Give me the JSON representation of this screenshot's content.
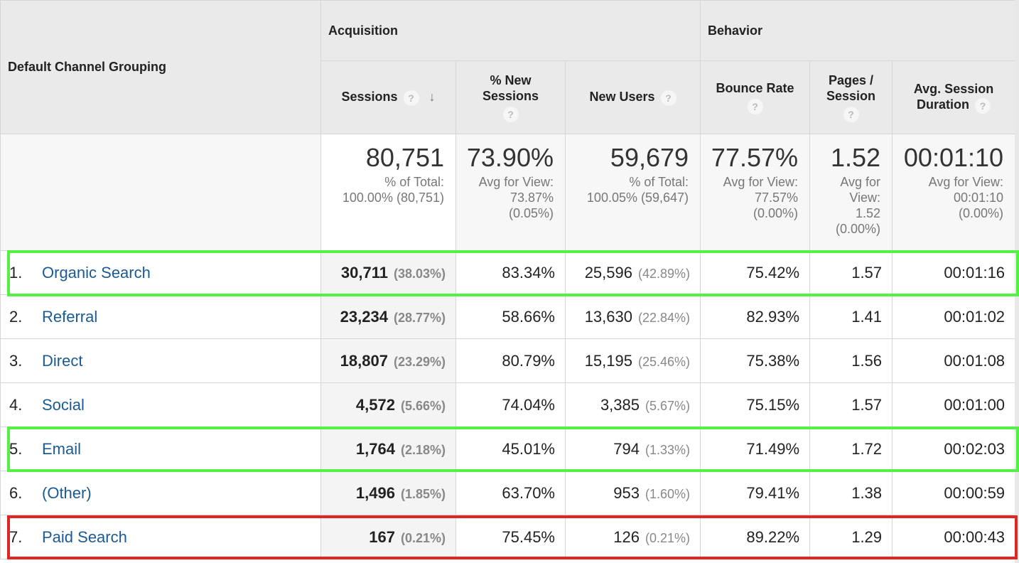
{
  "header": {
    "dimension": "Default Channel Grouping",
    "groups": [
      "Acquisition",
      "Behavior"
    ],
    "columns": [
      "Sessions",
      "% New Sessions",
      "New Users",
      "Bounce Rate",
      "Pages / Session",
      "Avg. Session Duration"
    ],
    "help_icon": "?"
  },
  "totals": {
    "sessions": {
      "value": "80,751",
      "l1": "% of Total:",
      "l2": "100.00% (80,751)"
    },
    "new_sessions": {
      "value": "73.90%",
      "l1": "Avg for View:",
      "l2": "73.87%",
      "l3": "(0.05%)"
    },
    "new_users": {
      "value": "59,679",
      "l1": "% of Total:",
      "l2": "100.05% (59,647)"
    },
    "bounce": {
      "value": "77.57%",
      "l1": "Avg for View:",
      "l2": "77.57%",
      "l3": "(0.00%)"
    },
    "pages": {
      "value": "1.52",
      "l1": "Avg for",
      "l2": "View:",
      "l3": "1.52",
      "l4": "(0.00%)"
    },
    "duration": {
      "value": "00:01:10",
      "l1": "Avg for View:",
      "l2": "00:01:10",
      "l3": "(0.00%)"
    }
  },
  "rows": [
    {
      "rank": "1.",
      "channel": "Organic Search",
      "sessions": "30,711",
      "sessions_pct": "(38.03%)",
      "new_sessions": "83.34%",
      "new_users": "25,596",
      "new_users_pct": "(42.89%)",
      "bounce": "75.42%",
      "pages": "1.57",
      "duration": "00:01:16"
    },
    {
      "rank": "2.",
      "channel": "Referral",
      "sessions": "23,234",
      "sessions_pct": "(28.77%)",
      "new_sessions": "58.66%",
      "new_users": "13,630",
      "new_users_pct": "(22.84%)",
      "bounce": "82.93%",
      "pages": "1.41",
      "duration": "00:01:02"
    },
    {
      "rank": "3.",
      "channel": "Direct",
      "sessions": "18,807",
      "sessions_pct": "(23.29%)",
      "new_sessions": "80.79%",
      "new_users": "15,195",
      "new_users_pct": "(25.46%)",
      "bounce": "75.38%",
      "pages": "1.56",
      "duration": "00:01:08"
    },
    {
      "rank": "4.",
      "channel": "Social",
      "sessions": "4,572",
      "sessions_pct": "(5.66%)",
      "new_sessions": "74.04%",
      "new_users": "3,385",
      "new_users_pct": "(5.67%)",
      "bounce": "75.15%",
      "pages": "1.57",
      "duration": "00:01:00"
    },
    {
      "rank": "5.",
      "channel": "Email",
      "sessions": "1,764",
      "sessions_pct": "(2.18%)",
      "new_sessions": "45.01%",
      "new_users": "794",
      "new_users_pct": "(1.33%)",
      "bounce": "71.49%",
      "pages": "1.72",
      "duration": "00:02:03"
    },
    {
      "rank": "6.",
      "channel": "(Other)",
      "sessions": "1,496",
      "sessions_pct": "(1.85%)",
      "new_sessions": "63.70%",
      "new_users": "953",
      "new_users_pct": "(1.60%)",
      "bounce": "79.41%",
      "pages": "1.38",
      "duration": "00:00:59"
    },
    {
      "rank": "7.",
      "channel": "Paid Search",
      "sessions": "167",
      "sessions_pct": "(0.21%)",
      "new_sessions": "75.45%",
      "new_users": "126",
      "new_users_pct": "(0.21%)",
      "bounce": "89.22%",
      "pages": "1.29",
      "duration": "00:00:43"
    }
  ],
  "highlights": {
    "green": "#55f045",
    "red": "#e02525"
  }
}
